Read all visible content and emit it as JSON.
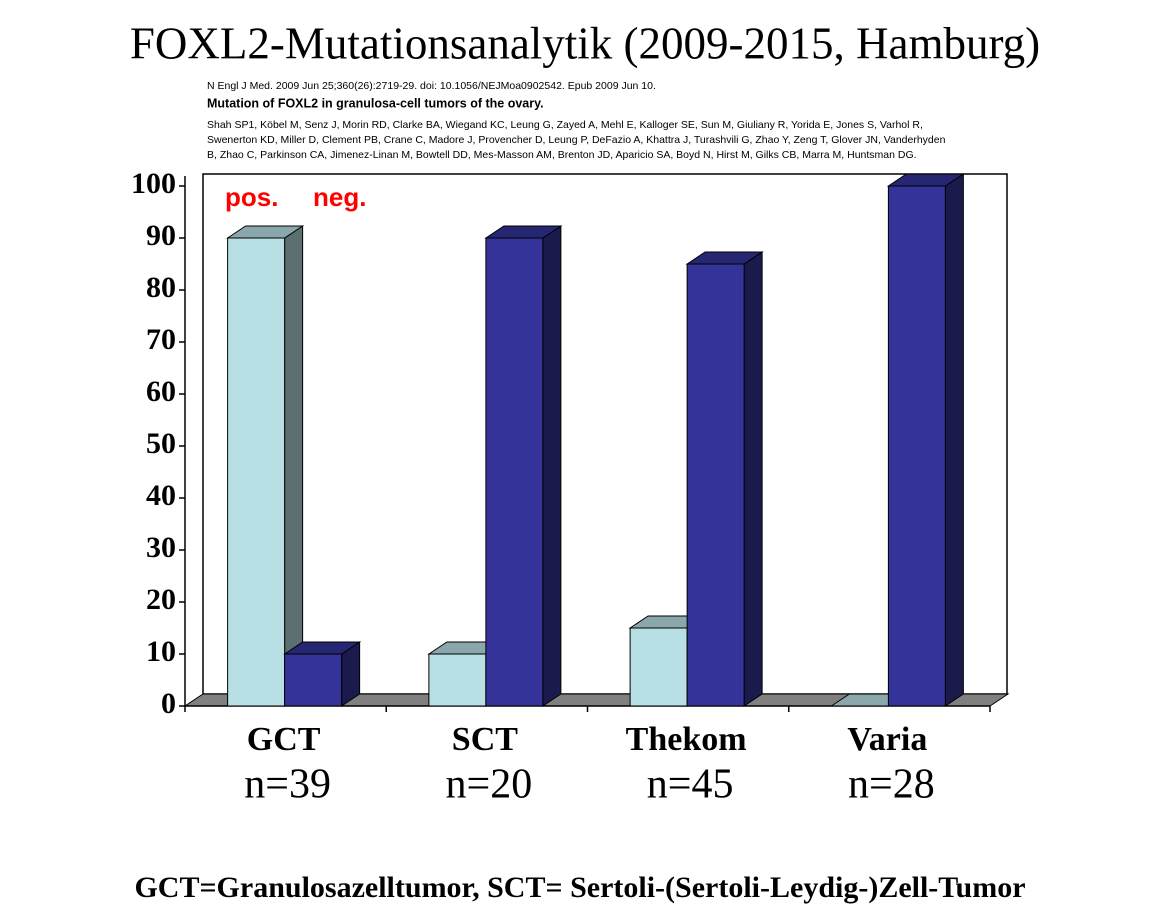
{
  "chart_data": {
    "type": "bar3d",
    "title": "FOXL2-Mutationsanalytik (2009-2015, Hamburg)",
    "citation": {
      "journal": "N Engl J Med. 2009 Jun 25;360(26):2719-29. doi: 10.1056/NEJMoa0902542. Epub 2009 Jun 10.",
      "article_title": "Mutation of FOXL2 in granulosa-cell tumors of the ovary.",
      "authors": [
        "Shah SP1, Köbel M, Senz J, Morin RD, Clarke BA, Wiegand KC, Leung G, Zayed A, Mehl E, Kalloger SE, Sun M, Giuliany R, Yorida E, Jones S, Varhol R,",
        "Swenerton KD, Miller D, Clement PB, Crane C, Madore J, Provencher D, Leung P, DeFazio A, Khattra J, Turashvili G, Zhao Y, Zeng T, Glover JN, Vanderhyden",
        "B, Zhao C, Parkinson CA, Jimenez-Linan M, Bowtell DD, Mes-Masson AM, Brenton JD, Aparicio SA, Boyd N, Hirst M, Gilks CB, Marra M, Huntsman DG."
      ]
    },
    "categories": [
      "GCT",
      "SCT",
      "Thekom",
      "Varia"
    ],
    "n_labels": [
      "n=39",
      "n=20",
      "n=45",
      "n=28"
    ],
    "series": [
      {
        "name": "pos.",
        "color": "#b8e0e4",
        "values": [
          90,
          10,
          15,
          0
        ]
      },
      {
        "name": "neg.",
        "color": "#333399",
        "values": [
          10,
          90,
          85,
          100
        ]
      }
    ],
    "ylim": [
      0,
      100
    ],
    "yticks": [
      0,
      10,
      20,
      30,
      40,
      50,
      60,
      70,
      80,
      90,
      100
    ],
    "legend_color": "#ff0000",
    "footnote": "GCT=Granulosazelltumor, SCT= Sertoli-(Sertoli-Leydig-)Zell-Tumor"
  }
}
